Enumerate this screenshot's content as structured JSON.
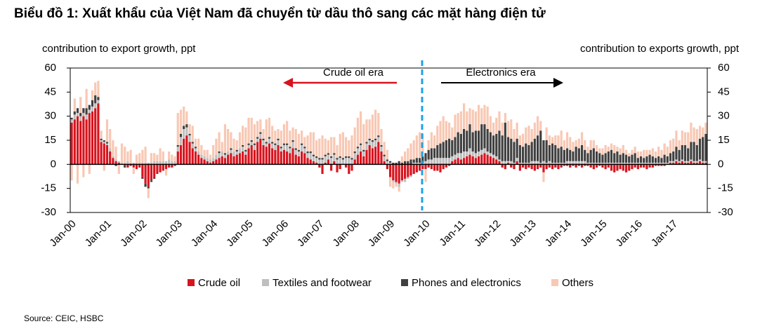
{
  "chart_data": {
    "type": "bar",
    "stacked": true,
    "title": "Biểu đồ 1: Xuất khẩu của Việt Nam đã chuyển từ dầu thô sang các mặt hàng điện tử",
    "ylabel": "contribution to export growth, ppt",
    "y2label": "contribution to exports growth, ppt",
    "annotations": [
      "Crude oil era",
      "Electronics era"
    ],
    "source": "Source: CEIC, HSBC",
    "ylim": [
      -30,
      60
    ],
    "yticks": [
      -30,
      -15,
      0,
      15,
      30,
      45,
      60
    ],
    "y2lim": [
      -30,
      60
    ],
    "y2ticks": [
      -30,
      -15,
      0,
      15,
      30,
      45,
      60
    ],
    "categories": [
      "Jan-00",
      null,
      null,
      null,
      null,
      null,
      null,
      null,
      null,
      null,
      null,
      null,
      "Jan-01",
      null,
      null,
      null,
      null,
      null,
      null,
      null,
      null,
      null,
      null,
      null,
      "Jan-02",
      null,
      null,
      null,
      null,
      null,
      null,
      null,
      null,
      null,
      null,
      null,
      "Jan-03",
      null,
      null,
      null,
      null,
      null,
      null,
      null,
      null,
      null,
      null,
      null,
      "Jan-04",
      null,
      null,
      null,
      null,
      null,
      null,
      null,
      null,
      null,
      null,
      null,
      "Jan-05",
      null,
      null,
      null,
      null,
      null,
      null,
      null,
      null,
      null,
      null,
      null,
      "Jan-06",
      null,
      null,
      null,
      null,
      null,
      null,
      null,
      null,
      null,
      null,
      null,
      "Jan-07",
      null,
      null,
      null,
      null,
      null,
      null,
      null,
      null,
      null,
      null,
      null,
      "Jan-08",
      null,
      null,
      null,
      null,
      null,
      null,
      null,
      null,
      null,
      null,
      null,
      "Jan-09",
      null,
      null,
      null,
      null,
      null,
      null,
      null,
      null,
      null,
      null,
      null,
      "Jan-10",
      null,
      null,
      null,
      null,
      null,
      null,
      null,
      null,
      null,
      null,
      null,
      "Jan-11",
      null,
      null,
      null,
      null,
      null,
      null,
      null,
      null,
      null,
      null,
      null,
      "Jan-12",
      null,
      null,
      null,
      null,
      null,
      null,
      null,
      null,
      null,
      null,
      null,
      "Jan-13",
      null,
      null,
      null,
      null,
      null,
      null,
      null,
      null,
      null,
      null,
      null,
      "Jan-14",
      null,
      null,
      null,
      null,
      null,
      null,
      null,
      null,
      null,
      null,
      null,
      "Jan-15",
      null,
      null,
      null,
      null,
      null,
      null,
      null,
      null,
      null,
      null,
      null,
      "Jan-16",
      null,
      null,
      null,
      null,
      null,
      null,
      null,
      null,
      null,
      null,
      null,
      "Jan-17",
      null,
      null,
      null,
      null,
      null,
      null,
      null,
      null,
      null,
      null,
      null
    ],
    "series": [
      {
        "name": "Crude oil",
        "color": "#d7141e",
        "values": [
          26,
          28,
          30,
          27,
          30,
          28,
          32,
          33,
          35,
          38,
          14,
          13,
          12,
          8,
          4,
          2,
          1,
          0,
          -1,
          -2,
          -1,
          -2,
          -3,
          -2,
          -8,
          -12,
          -14,
          -10,
          -8,
          -6,
          -5,
          -4,
          -3,
          -2,
          -2,
          -1,
          8,
          12,
          16,
          18,
          14,
          10,
          8,
          6,
          4,
          3,
          2,
          1,
          2,
          3,
          4,
          5,
          4,
          6,
          7,
          5,
          6,
          7,
          8,
          6,
          10,
          12,
          9,
          14,
          16,
          12,
          11,
          13,
          10,
          9,
          12,
          8,
          9,
          8,
          7,
          10,
          6,
          5,
          8,
          7,
          4,
          3,
          2,
          1,
          -2,
          -6,
          1,
          3,
          -4,
          2,
          -5,
          -3,
          0,
          -2,
          -6,
          -4,
          3,
          6,
          8,
          5,
          9,
          12,
          10,
          11,
          14,
          8,
          2,
          -3,
          -8,
          -10,
          -11,
          -12,
          -10,
          -9,
          -8,
          -7,
          -6,
          -5,
          -4,
          -3,
          -3,
          -2,
          -3,
          -4,
          -4,
          -5,
          -3,
          -2,
          -1,
          2,
          3,
          4,
          3,
          4,
          5,
          6,
          5,
          4,
          5,
          6,
          7,
          6,
          5,
          4,
          3,
          2,
          -2,
          -3,
          1,
          -2,
          -3,
          2,
          -4,
          -2,
          -3,
          -2,
          -3,
          -4,
          -3,
          -2,
          -5,
          -3,
          -2,
          -3,
          -2,
          -3,
          -2,
          -1,
          -1,
          -2,
          -1,
          -2,
          -1,
          -2,
          -1,
          -1,
          -2,
          -3,
          -2,
          -1,
          -2,
          -3,
          -2,
          -4,
          -5,
          -4,
          -3,
          -4,
          -5,
          -4,
          -3,
          -2,
          -3,
          -2,
          -2,
          -3,
          -2,
          -2,
          -1,
          -1,
          -1,
          -1,
          0,
          1,
          1,
          2,
          1,
          2,
          1,
          1,
          2,
          1,
          1,
          2,
          1,
          1
        ]
      },
      {
        "name": "Textiles and footwear",
        "color": "#bfbfbf",
        "values": [
          2,
          3,
          2,
          3,
          2,
          3,
          2,
          3,
          3,
          2,
          1,
          1,
          1,
          2,
          1,
          1,
          1,
          1,
          1,
          2,
          1,
          1,
          1,
          1,
          1,
          1,
          1,
          1,
          2,
          2,
          2,
          2,
          2,
          3,
          2,
          2,
          3,
          5,
          6,
          5,
          4,
          3,
          2,
          2,
          2,
          2,
          2,
          2,
          2,
          3,
          3,
          3,
          2,
          2,
          2,
          3,
          2,
          3,
          3,
          2,
          2,
          2,
          3,
          2,
          3,
          3,
          2,
          3,
          3,
          3,
          3,
          2,
          3,
          4,
          3,
          4,
          3,
          3,
          4,
          3,
          3,
          4,
          3,
          3,
          3,
          3,
          4,
          3,
          4,
          4,
          3,
          4,
          3,
          4,
          4,
          3,
          4,
          4,
          4,
          3,
          4,
          3,
          4,
          4,
          3,
          3,
          3,
          2,
          1,
          -1,
          -1,
          -2,
          -1,
          -2,
          -1,
          -1,
          1,
          1,
          1,
          1,
          2,
          3,
          3,
          4,
          4,
          4,
          4,
          4,
          4,
          3,
          3,
          3,
          4,
          4,
          3,
          4,
          3,
          3,
          3,
          3,
          3,
          2,
          2,
          2,
          2,
          1,
          2,
          2,
          1,
          2,
          1,
          2,
          1,
          1,
          1,
          1,
          2,
          2,
          2,
          1,
          2,
          1,
          2,
          1,
          1,
          1,
          1,
          1,
          2,
          2,
          2,
          2,
          2,
          2,
          2,
          1,
          1,
          1,
          1,
          1,
          1,
          1,
          1,
          1,
          1,
          1,
          1,
          1,
          1,
          1,
          1,
          1,
          1,
          1,
          1,
          1,
          1,
          1,
          1,
          1,
          1,
          1,
          1,
          1,
          1,
          1,
          1,
          1,
          1,
          1,
          1,
          1,
          1,
          1,
          1,
          1
        ]
      },
      {
        "name": "Phones and electronics",
        "color": "#404040",
        "values": [
          1,
          2,
          3,
          2,
          3,
          4,
          3,
          4,
          5,
          2,
          1,
          1,
          1,
          0,
          0,
          -1,
          0,
          0,
          -1,
          0,
          0,
          0,
          0,
          0,
          -1,
          -2,
          -1,
          -1,
          -1,
          0,
          0,
          0,
          0,
          0,
          0,
          0,
          1,
          2,
          2,
          2,
          1,
          1,
          1,
          0,
          0,
          0,
          0,
          0,
          0,
          0,
          1,
          0,
          1,
          0,
          1,
          0,
          1,
          0,
          1,
          1,
          1,
          1,
          1,
          1,
          1,
          1,
          1,
          1,
          1,
          1,
          1,
          1,
          1,
          1,
          1,
          1,
          1,
          1,
          1,
          1,
          1,
          1,
          1,
          1,
          1,
          1,
          1,
          1,
          1,
          1,
          1,
          1,
          1,
          1,
          1,
          1,
          1,
          1,
          1,
          1,
          1,
          1,
          1,
          1,
          1,
          1,
          1,
          1,
          1,
          1,
          1,
          2,
          1,
          2,
          2,
          3,
          2,
          3,
          3,
          4,
          5,
          6,
          7,
          6,
          8,
          9,
          10,
          11,
          12,
          10,
          11,
          13,
          12,
          14,
          13,
          15,
          12,
          14,
          13,
          16,
          15,
          14,
          13,
          12,
          14,
          18,
          16,
          24,
          15,
          14,
          13,
          12,
          11,
          10,
          12,
          11,
          12,
          14,
          16,
          20,
          13,
          14,
          10,
          12,
          11,
          9,
          10,
          8,
          8,
          7,
          6,
          9,
          8,
          10,
          7,
          6,
          8,
          9,
          7,
          6,
          5,
          6,
          7,
          8,
          6,
          7,
          5,
          6,
          5,
          4,
          5,
          6,
          3,
          4,
          3,
          4,
          5,
          4,
          3,
          4,
          3,
          5,
          4,
          5,
          6,
          8,
          7,
          9,
          10,
          8,
          11,
          12,
          10,
          13,
          15,
          17
        ]
      },
      {
        "name": "Others",
        "color": "#f8c8b4",
        "values": [
          -10,
          8,
          -12,
          10,
          -8,
          12,
          -6,
          6,
          8,
          10,
          5,
          -4,
          14,
          12,
          10,
          8,
          -6,
          12,
          10,
          6,
          8,
          -4,
          5,
          6,
          8,
          10,
          -6,
          6,
          5,
          4,
          8,
          6,
          -4,
          5,
          4,
          3,
          20,
          15,
          12,
          8,
          6,
          10,
          5,
          8,
          6,
          4,
          5,
          3,
          8,
          10,
          12,
          6,
          18,
          14,
          10,
          8,
          6,
          10,
          12,
          14,
          16,
          14,
          12,
          10,
          8,
          6,
          14,
          12,
          10,
          8,
          6,
          10,
          12,
          14,
          10,
          8,
          12,
          10,
          8,
          6,
          10,
          12,
          14,
          10,
          12,
          14,
          10,
          8,
          12,
          10,
          8,
          14,
          16,
          12,
          10,
          14,
          15,
          18,
          20,
          16,
          14,
          12,
          16,
          18,
          14,
          10,
          8,
          6,
          -6,
          -4,
          -2,
          -3,
          4,
          6,
          8,
          10,
          12,
          14,
          16,
          14,
          -8,
          6,
          10,
          8,
          12,
          14,
          16,
          12,
          10,
          8,
          14,
          12,
          14,
          16,
          12,
          10,
          14,
          12,
          16,
          10,
          12,
          14,
          10,
          8,
          10,
          12,
          8,
          6,
          10,
          12,
          8,
          10,
          6,
          8,
          10,
          12,
          8,
          10,
          12,
          6,
          -6,
          8,
          6,
          4,
          6,
          8,
          10,
          6,
          10,
          8,
          6,
          4,
          6,
          8,
          6,
          4,
          6,
          5,
          4,
          3,
          4,
          5,
          3,
          4,
          5,
          3,
          4,
          5,
          3,
          2,
          3,
          4,
          4,
          3,
          5,
          4,
          3,
          5,
          4,
          6,
          5,
          7,
          6,
          8,
          8,
          10,
          6,
          9,
          8,
          10,
          12,
          9,
          10,
          8,
          6,
          7
        ]
      }
    ]
  }
}
